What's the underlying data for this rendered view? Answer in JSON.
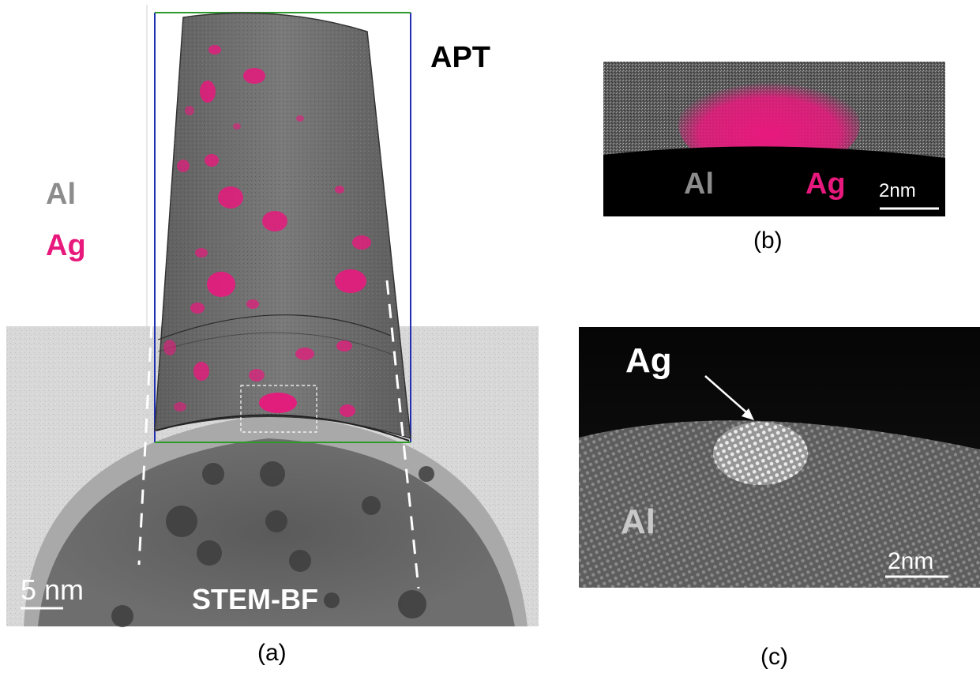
{
  "panel_a": {
    "legend": {
      "al": "Al",
      "ag": "Ag"
    },
    "apt_label": "APT",
    "stem_label": "STEM-BF",
    "scale_bar": "5 nm",
    "caption": "(a)"
  },
  "panel_b": {
    "al_label": "Al",
    "ag_label": "Ag",
    "scale_bar": "2nm",
    "caption": "(b)"
  },
  "panel_c": {
    "ag_label": "Ag",
    "al_label": "Al",
    "scale_bar": "2nm",
    "caption": "(c)"
  },
  "colors": {
    "al": "#8c8c8c",
    "ag": "#e8197d",
    "bounding_box_side": "#1f2fb0",
    "bounding_box_cap": "#2e9a2e"
  }
}
